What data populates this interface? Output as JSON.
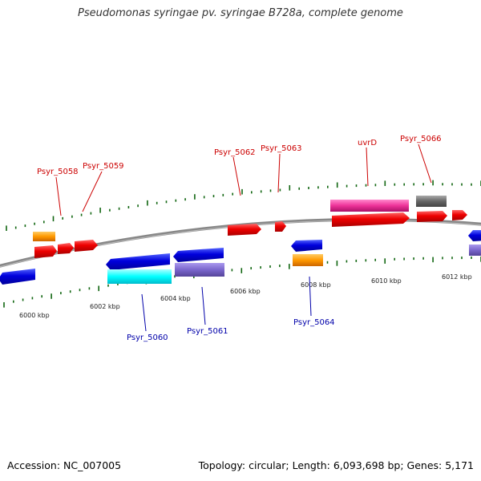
{
  "title": "Pseudomonas syringae pv. syringae B728a, complete genome",
  "footer": {
    "accession": "Accession: NC_007005",
    "topology": "Topology: circular; Length: 6,093,698 bp; Genes: 5,171"
  },
  "kbp_labels": [
    "6000 kbp",
    "6002 kbp",
    "6004 kbp",
    "6006 kbp",
    "6008 kbp",
    "6010 kbp",
    "6012 kbp"
  ],
  "gene_labels_forward": [
    "Psyr_5058",
    "Psyr_5059",
    "Psyr_5062",
    "Psyr_5063",
    "uvrD",
    "Psyr_5066"
  ],
  "gene_labels_reverse": [
    "Psyr_5060",
    "Psyr_5061",
    "Psyr_5064"
  ],
  "colors": {
    "forward_cds": "#ee0000",
    "reverse_cds": "#0000dd",
    "orange": "#ff9900",
    "cyan": "#00ffff",
    "slate": "#7a66cc",
    "magenta": "#ee3399",
    "gray": "#666666",
    "tick": "#116611",
    "backbone": "#888888"
  }
}
